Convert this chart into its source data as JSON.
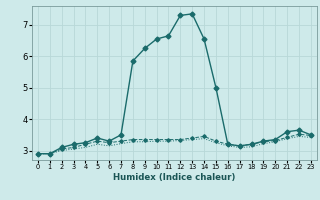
{
  "xlabel": "Humidex (Indice chaleur)",
  "background_color": "#ceeaea",
  "grid_color": "#b8d8d8",
  "line_color": "#1a6b6b",
  "xlim": [
    -0.5,
    23.5
  ],
  "ylim": [
    2.7,
    7.6
  ],
  "yticks": [
    3,
    4,
    5,
    6,
    7
  ],
  "xticks": [
    0,
    1,
    2,
    3,
    4,
    5,
    6,
    7,
    8,
    9,
    10,
    11,
    12,
    13,
    14,
    15,
    16,
    17,
    18,
    19,
    20,
    21,
    22,
    23
  ],
  "series1_x": [
    0,
    1,
    2,
    3,
    4,
    5,
    6,
    7,
    8,
    9,
    10,
    11,
    12,
    13,
    14,
    15,
    16,
    17,
    18,
    19,
    20,
    21,
    22,
    23
  ],
  "series1_y": [
    2.9,
    2.9,
    3.1,
    3.2,
    3.25,
    3.4,
    3.3,
    3.5,
    5.85,
    6.25,
    6.55,
    6.65,
    7.3,
    7.35,
    6.55,
    5.0,
    3.2,
    3.15,
    3.2,
    3.3,
    3.35,
    3.6,
    3.65,
    3.5
  ],
  "series2_x": [
    0,
    1,
    2,
    3,
    4,
    5,
    6,
    7,
    8,
    9,
    10,
    11,
    12,
    13,
    14,
    15,
    16,
    17,
    18,
    19,
    20,
    21,
    22,
    23
  ],
  "series2_y": [
    2.9,
    2.9,
    3.05,
    3.1,
    3.2,
    3.3,
    3.25,
    3.3,
    3.35,
    3.35,
    3.35,
    3.35,
    3.35,
    3.4,
    3.45,
    3.3,
    3.2,
    3.15,
    3.2,
    3.28,
    3.32,
    3.42,
    3.52,
    3.48
  ],
  "series3_x": [
    0,
    1,
    2,
    3,
    4,
    5,
    6,
    7,
    8,
    9,
    10,
    11,
    12,
    13,
    14,
    15,
    16,
    17,
    18,
    19,
    20,
    21,
    22,
    23
  ],
  "series3_y": [
    2.9,
    2.9,
    3.0,
    3.05,
    3.1,
    3.2,
    3.15,
    3.22,
    3.28,
    3.28,
    3.3,
    3.3,
    3.32,
    3.35,
    3.38,
    3.25,
    3.15,
    3.1,
    3.12,
    3.22,
    3.28,
    3.38,
    3.45,
    3.42
  ]
}
